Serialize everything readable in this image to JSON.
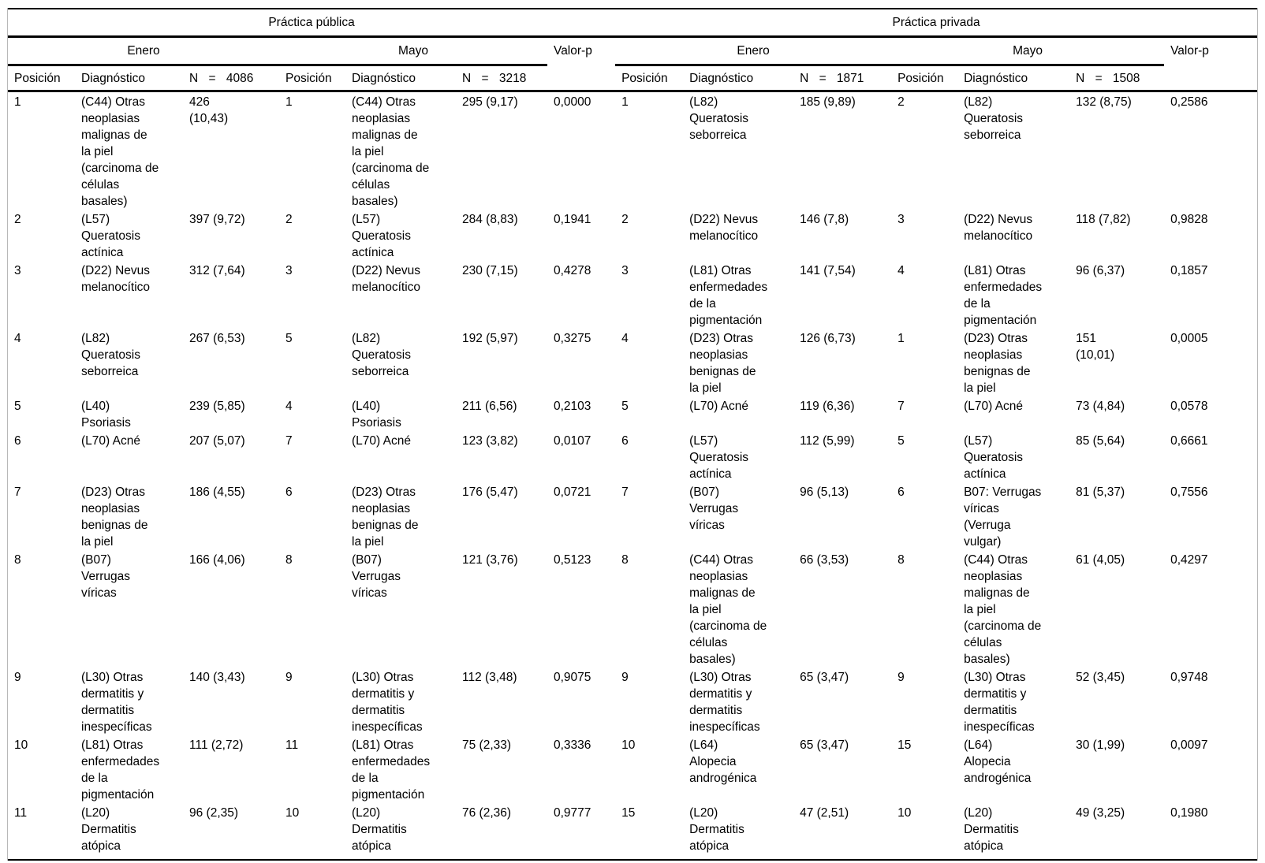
{
  "groups": [
    {
      "title": "Práctica pública",
      "subheaders": {
        "enero": "Enero",
        "mayo": "Mayo",
        "valorp": "Valor-p"
      },
      "cols": {
        "posicion_enero": "Posición",
        "diagnostico_enero": "Diagnóstico",
        "n_enero": "N = 4086",
        "posicion_mayo": "Posición",
        "diagnostico_mayo": "Diagnóstico",
        "n_mayo": "N = 3218"
      },
      "rows": [
        {
          "pos_e": "1",
          "diag_e": "(C44) Otras\nneoplasias\nmalignas de\nla piel\n(carcinoma de\ncélulas\nbasales)",
          "n_e": "426\n(10,43)",
          "pos_m": "1",
          "diag_m": "(C44) Otras\nneoplasias\nmalignas de\nla piel\n(carcinoma de\ncélulas\nbasales)",
          "n_m": "295 (9,17)",
          "p": "0,0000"
        },
        {
          "pos_e": "2",
          "diag_e": "(L57)\nQueratosis\nactínica",
          "n_e": "397 (9,72)",
          "pos_m": "2",
          "diag_m": "(L57)\nQueratosis\nactínica",
          "n_m": "284 (8,83)",
          "p": "0,1941"
        },
        {
          "pos_e": "3",
          "diag_e": "(D22) Nevus\nmelanocítico",
          "n_e": "312 (7,64)",
          "pos_m": "3",
          "diag_m": "(D22) Nevus\nmelanocítico",
          "n_m": "230 (7,15)",
          "p": "0,4278"
        },
        {
          "pos_e": "4",
          "diag_e": "(L82)\nQueratosis\nseborreica",
          "n_e": "267 (6,53)",
          "pos_m": "5",
          "diag_m": "(L82)\nQueratosis\nseborreica",
          "n_m": "192 (5,97)",
          "p": "0,3275"
        },
        {
          "pos_e": "5",
          "diag_e": "(L40)\nPsoriasis",
          "n_e": "239 (5,85)",
          "pos_m": "4",
          "diag_m": "(L40)\nPsoriasis",
          "n_m": "211 (6,56)",
          "p": "0,2103"
        },
        {
          "pos_e": "6",
          "diag_e": "(L70) Acné",
          "n_e": "207 (5,07)",
          "pos_m": "7",
          "diag_m": "(L70) Acné",
          "n_m": "123 (3,82)",
          "p": "0,0107"
        },
        {
          "pos_e": "7",
          "diag_e": "(D23) Otras\nneoplasias\nbenignas de\nla piel",
          "n_e": "186 (4,55)",
          "pos_m": "6",
          "diag_m": "(D23) Otras\nneoplasias\nbenignas de\nla piel",
          "n_m": "176 (5,47)",
          "p": "0,0721"
        },
        {
          "pos_e": "8",
          "diag_e": "(B07)\nVerrugas\nvíricas",
          "n_e": "166 (4,06)",
          "pos_m": "8",
          "diag_m": "(B07)\nVerrugas\nvíricas",
          "n_m": "121 (3,76)",
          "p": "0,5123"
        },
        {
          "pos_e": "9",
          "diag_e": "(L30) Otras\ndermatitis y\ndermatitis\ninespecíficas",
          "n_e": "140 (3,43)",
          "pos_m": "9",
          "diag_m": "(L30) Otras\ndermatitis y\ndermatitis\ninespecíficas",
          "n_m": "112 (3,48)",
          "p": "0,9075"
        },
        {
          "pos_e": "10",
          "diag_e": "(L81) Otras\nenfermedades\nde la\npigmentación",
          "n_e": "111 (2,72)",
          "pos_m": "11",
          "diag_m": "(L81) Otras\nenfermedades\nde la\npigmentación",
          "n_m": "75 (2,33)",
          "p": "0,3336"
        },
        {
          "pos_e": "11",
          "diag_e": "(L20)\nDermatitis\natópica",
          "n_e": "96 (2,35)",
          "pos_m": "10",
          "diag_m": "(L20)\nDermatitis\natópica",
          "n_m": "76 (2,36)",
          "p": "0,9777"
        }
      ]
    },
    {
      "title": "Práctica privada",
      "subheaders": {
        "enero": "Enero",
        "mayo": "Mayo",
        "valorp": "Valor-p"
      },
      "cols": {
        "posicion_enero": "Posición",
        "diagnostico_enero": "Diagnóstico",
        "n_enero": "N = 1871",
        "posicion_mayo": "Posición",
        "diagnostico_mayo": "Diagnóstico",
        "n_mayo": "N = 1508"
      },
      "rows": [
        {
          "pos_e": "1",
          "diag_e": "(L82)\nQueratosis\nseborreica",
          "n_e": "185 (9,89)",
          "pos_m": "2",
          "diag_m": "(L82)\nQueratosis\nseborreica",
          "n_m": "132 (8,75)",
          "p": "0,2586"
        },
        {
          "pos_e": "2",
          "diag_e": "(D22) Nevus\nmelanocítico",
          "n_e": "146 (7,8)",
          "pos_m": "3",
          "diag_m": "(D22) Nevus\nmelanocítico",
          "n_m": "118 (7,82)",
          "p": "0,9828"
        },
        {
          "pos_e": "3",
          "diag_e": "(L81) Otras\nenfermedades\nde la\npigmentación",
          "n_e": "141 (7,54)",
          "pos_m": "4",
          "diag_m": "(L81) Otras\nenfermedades\nde la\npigmentación",
          "n_m": "96 (6,37)",
          "p": "0,1857"
        },
        {
          "pos_e": "4",
          "diag_e": "(D23) Otras\nneoplasias\nbenignas de\nla piel",
          "n_e": "126 (6,73)",
          "pos_m": "1",
          "diag_m": "(D23) Otras\nneoplasias\nbenignas de\nla piel",
          "n_m": "151\n(10,01)",
          "p": "0,0005"
        },
        {
          "pos_e": "5",
          "diag_e": "(L70) Acné",
          "n_e": "119 (6,36)",
          "pos_m": "7",
          "diag_m": "(L70) Acné",
          "n_m": "73 (4,84)",
          "p": "0,0578"
        },
        {
          "pos_e": "6",
          "diag_e": "(L57)\nQueratosis\nactínica",
          "n_e": "112 (5,99)",
          "pos_m": "5",
          "diag_m": "(L57)\nQueratosis\nactínica",
          "n_m": "85 (5,64)",
          "p": "0,6661"
        },
        {
          "pos_e": "7",
          "diag_e": "(B07)\nVerrugas\nvíricas",
          "n_e": "96 (5,13)",
          "pos_m": "6",
          "diag_m": "B07: Verrugas\nvíricas\n(Verruga\nvulgar)",
          "n_m": "81 (5,37)",
          "p": "0,7556"
        },
        {
          "pos_e": "8",
          "diag_e": "(C44) Otras\nneoplasias\nmalignas de\nla piel\n(carcinoma de\ncélulas\nbasales)",
          "n_e": "66 (3,53)",
          "pos_m": "8",
          "diag_m": "(C44) Otras\nneoplasias\nmalignas de\nla piel\n(carcinoma de\ncélulas\nbasales)",
          "n_m": "61 (4,05)",
          "p": "0,4297"
        },
        {
          "pos_e": "9",
          "diag_e": "(L30) Otras\ndermatitis y\ndermatitis\ninespecíficas",
          "n_e": "65 (3,47)",
          "pos_m": "9",
          "diag_m": "(L30) Otras\ndermatitis y\ndermatitis\ninespecíficas",
          "n_m": "52 (3,45)",
          "p": "0,9748"
        },
        {
          "pos_e": "10",
          "diag_e": "(L64)\nAlopecia\nandrogénica",
          "n_e": "65 (3,47)",
          "pos_m": "15",
          "diag_m": "(L64)\nAlopecia\nandrogénica",
          "n_m": "30 (1,99)",
          "p": "0,0097"
        },
        {
          "pos_e": "15",
          "diag_e": "(L20)\nDermatitis\natópica",
          "n_e": "47 (2,51)",
          "pos_m": "10",
          "diag_m": "(L20)\nDermatitis\natópica",
          "n_m": "49 (3,25)",
          "p": "0,1980"
        }
      ]
    }
  ]
}
